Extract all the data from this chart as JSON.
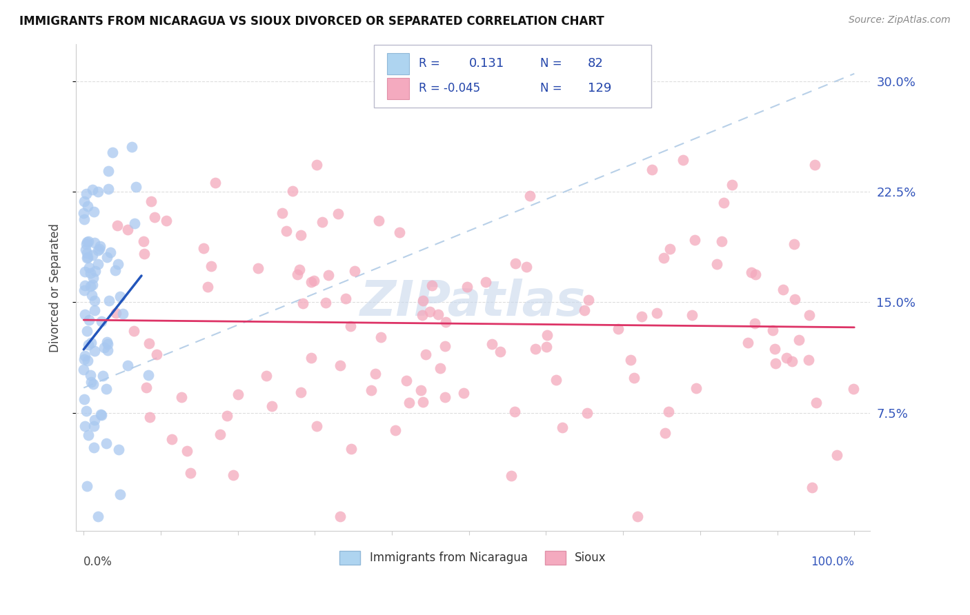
{
  "title": "IMMIGRANTS FROM NICARAGUA VS SIOUX DIVORCED OR SEPARATED CORRELATION CHART",
  "source": "Source: ZipAtlas.com",
  "ylabel": "Divorced or Separated",
  "color_nicaragua": "#A8C8F0",
  "color_sioux": "#F4A8BC",
  "color_line_nicaragua": "#2255BB",
  "color_line_sioux": "#DD3366",
  "color_trendline": "#B8D0E8",
  "watermark_color": "#C8D8EC",
  "ylim": [
    0.0,
    0.32
  ],
  "xlim": [
    0.0,
    1.02
  ],
  "yticks": [
    0.075,
    0.15,
    0.225,
    0.3
  ],
  "ytick_labels": [
    "7.5%",
    "15.0%",
    "22.5%",
    "30.0%"
  ],
  "R1": 0.131,
  "N1": 82,
  "R2": -0.045,
  "N2": 129,
  "grid_color": "#DDDDDD",
  "spine_color": "#CCCCCC",
  "title_color": "#111111",
  "source_color": "#888888",
  "tick_label_color": "#3355BB",
  "axis_label_color": "#444444"
}
